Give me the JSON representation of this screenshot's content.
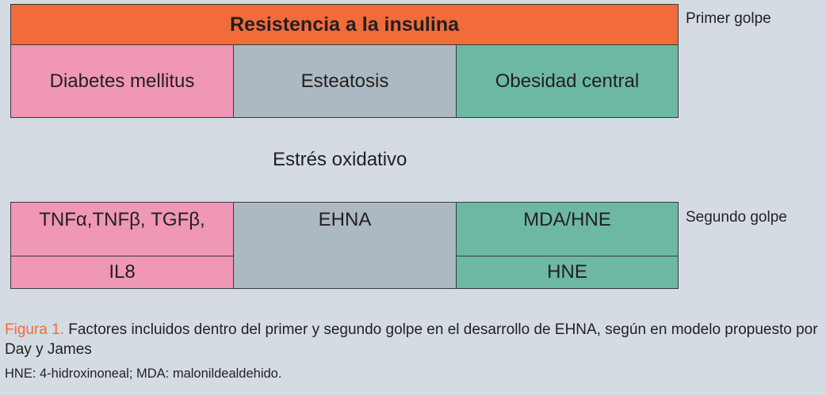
{
  "colors": {
    "background": "#d4dbe3",
    "orange": "#f26b3a",
    "pink": "#ef97b5",
    "gray": "#acb9c2",
    "teal": "#6db8a3"
  },
  "top_header": "Resistencia a la insulina",
  "primer_golpe": "Primer golpe",
  "top_row": [
    "Diabetes mellitus",
    "Esteatosis",
    "Obesidad central"
  ],
  "middle_label": "Estrés oxidativo",
  "segundo_golpe": "Segundo golpe",
  "bottom": {
    "pink_top": "TNFα,TNFβ, TGFβ,",
    "pink_bottom": "IL8",
    "gray": "EHNA",
    "teal_top": "MDA/HNE",
    "teal_bottom": "HNE"
  },
  "caption": {
    "figure_label": "Figura 1.",
    "text": " Factores incluidos dentro del primer y segundo golpe en el desarrollo de EHNA, según en modelo propuesto por Day y James",
    "note": "HNE: 4-hidroxinoneal; MDA: malonildealdehido."
  }
}
